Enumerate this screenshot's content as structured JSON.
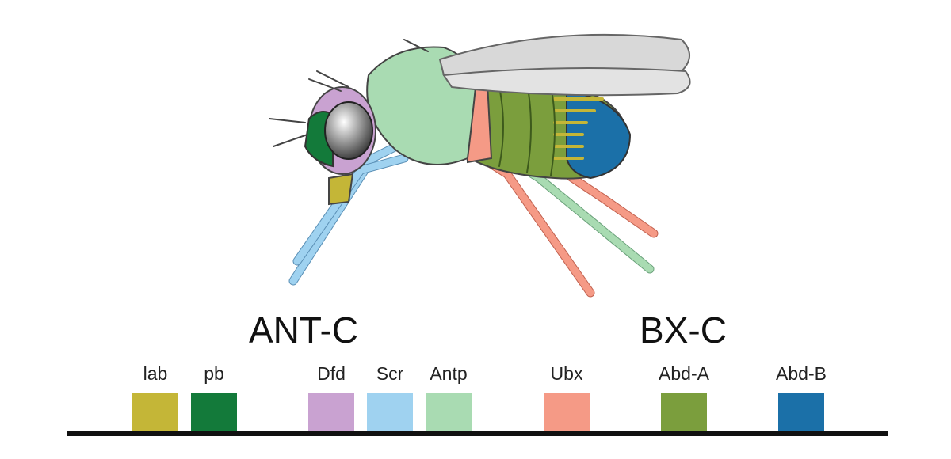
{
  "clusters": [
    {
      "label": "ANT-C",
      "genes": [
        {
          "label": "lab",
          "color": "#c4b637"
        },
        {
          "label": "pb",
          "color": "#137a3a"
        },
        {
          "label": "Dfd",
          "color": "#c9a2d1"
        },
        {
          "label": "Scr",
          "color": "#9fd2f0"
        },
        {
          "label": "Antp",
          "color": "#a9dbb2"
        }
      ]
    },
    {
      "label": "BX-C",
      "genes": [
        {
          "label": "Ubx",
          "color": "#f59a86"
        },
        {
          "label": "Abd-A",
          "color": "#7b9e3d"
        },
        {
          "label": "Abd-B",
          "color": "#1b70a8"
        }
      ]
    }
  ]
}
